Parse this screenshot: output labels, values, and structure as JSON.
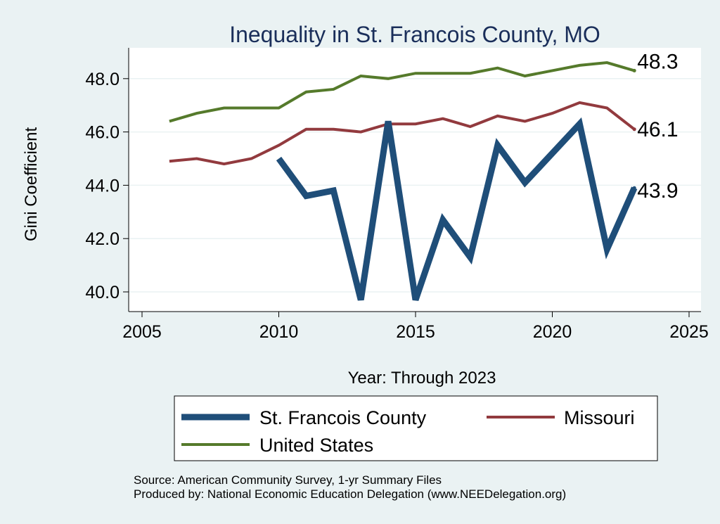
{
  "chart_data": {
    "type": "line",
    "title": "Inequality in St. Francois County, MO",
    "xlabel": "Year: Through 2023",
    "ylabel": "Gini Coefficient",
    "xlim": [
      2004.5,
      2025.5
    ],
    "ylim": [
      39.3,
      49.0
    ],
    "x_ticks": [
      2005,
      2010,
      2015,
      2020,
      2025
    ],
    "x_tick_labels": [
      "2005",
      "2010",
      "2015",
      "2020",
      "2025"
    ],
    "y_ticks": [
      40,
      42,
      44,
      46,
      48
    ],
    "y_tick_labels": [
      "40.0",
      "42.0",
      "44.0",
      "46.0",
      "48.0"
    ],
    "grid": true,
    "series": [
      {
        "name": "St. Francois County",
        "color": "#1f4e79",
        "width": 9,
        "x": [
          2010,
          2011,
          2012,
          2013,
          2014,
          2015,
          2016,
          2017,
          2018,
          2019,
          2020,
          2021,
          2022,
          2023
        ],
        "values": [
          45.0,
          43.6,
          43.8,
          39.7,
          46.4,
          39.7,
          42.7,
          41.3,
          45.5,
          44.1,
          45.2,
          46.3,
          41.6,
          43.9
        ],
        "end_label": "43.9"
      },
      {
        "name": "Missouri",
        "color": "#923a3e",
        "width": 4,
        "x": [
          2006,
          2007,
          2008,
          2009,
          2010,
          2011,
          2012,
          2013,
          2014,
          2015,
          2016,
          2017,
          2018,
          2019,
          2020,
          2021,
          2022,
          2023
        ],
        "values": [
          44.9,
          45.0,
          44.8,
          45.0,
          45.5,
          46.1,
          46.1,
          46.0,
          46.3,
          46.3,
          46.5,
          46.2,
          46.6,
          46.4,
          46.7,
          47.1,
          46.9,
          46.1
        ],
        "end_label": "46.1"
      },
      {
        "name": "United States",
        "color": "#557a2b",
        "width": 4,
        "x": [
          2006,
          2007,
          2008,
          2009,
          2010,
          2011,
          2012,
          2013,
          2014,
          2015,
          2016,
          2017,
          2018,
          2019,
          2020,
          2021,
          2022,
          2023
        ],
        "values": [
          46.4,
          46.7,
          46.9,
          46.9,
          46.9,
          47.5,
          47.6,
          48.1,
          48.0,
          48.2,
          48.2,
          48.2,
          48.4,
          48.1,
          48.3,
          48.5,
          48.6,
          48.3
        ],
        "end_label": "48.3"
      }
    ],
    "legend_placement": "bottom",
    "notes": [
      "Source: American Community Survey, 1-yr Summary Files",
      "Produced by: National Economic Education Delegation (www.NEEDelegation.org)"
    ]
  }
}
